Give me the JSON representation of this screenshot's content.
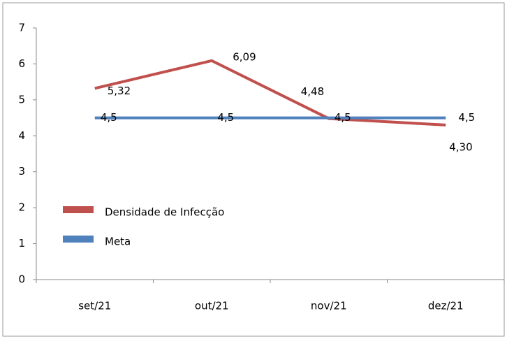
{
  "chart_data": {
    "type": "line",
    "categories": [
      "set/21",
      "out/21",
      "nov/21",
      "dez/21"
    ],
    "series": [
      {
        "name": "Densidade de Infecção",
        "color": "#c0504d",
        "values": [
          5.32,
          6.09,
          4.48,
          4.3
        ],
        "value_labels": [
          "5,32",
          "6,09",
          "4,48",
          "4,30"
        ]
      },
      {
        "name": "Meta",
        "color": "#4f81bd",
        "values": [
          4.5,
          4.5,
          4.5,
          4.5
        ],
        "value_labels": [
          "4,5",
          "4,5",
          "4,5",
          "4,5"
        ]
      }
    ],
    "ylim": [
      0,
      7
    ],
    "yticks": [
      0,
      1,
      2,
      3,
      4,
      5,
      6,
      7
    ],
    "grid": false,
    "legend": "left"
  }
}
